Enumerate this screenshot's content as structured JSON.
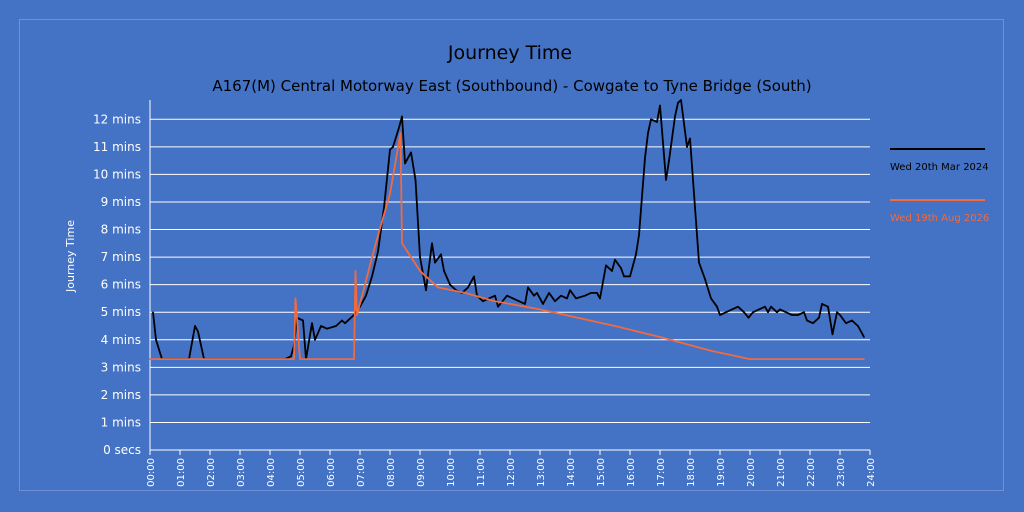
{
  "chart_data": {
    "type": "line",
    "title": "Journey Time",
    "subtitle": "A167(M) Central Motorway East (Southbound) - Cowgate to Tyne Bridge (South)",
    "ylabel": "Journey Time",
    "xlabel": "",
    "ylim": [
      0,
      12.7
    ],
    "xlim": [
      0,
      24
    ],
    "ytick_labels": [
      "0 secs",
      "1 mins",
      "2 mins",
      "3 mins",
      "4 mins",
      "5 mins",
      "6 mins",
      "7 mins",
      "8 mins",
      "9 mins",
      "10 mins",
      "11 mins",
      "12 mins"
    ],
    "xtick_labels": [
      "00:00",
      "01:00",
      "02:00",
      "03:00",
      "04:00",
      "05:00",
      "06:00",
      "07:00",
      "08:00",
      "09:00",
      "10:00",
      "11:00",
      "12:00",
      "13:00",
      "14:00",
      "15:00",
      "16:00",
      "17:00",
      "18:00",
      "19:00",
      "20:00",
      "21:00",
      "22:00",
      "23:00",
      "24:00"
    ],
    "grid": true,
    "legend_position": "right",
    "series": [
      {
        "name": "Wed 20th Mar 2024",
        "color": "#000000",
        "points": [
          [
            0.1,
            5.0
          ],
          [
            0.2,
            4.0
          ],
          [
            0.4,
            3.3
          ],
          [
            1.0,
            3.3
          ],
          [
            1.3,
            3.3
          ],
          [
            1.5,
            4.5
          ],
          [
            1.6,
            4.3
          ],
          [
            1.8,
            3.3
          ],
          [
            2.5,
            3.3
          ],
          [
            3.5,
            3.3
          ],
          [
            4.5,
            3.3
          ],
          [
            4.7,
            3.4
          ],
          [
            4.8,
            3.8
          ],
          [
            4.9,
            4.8
          ],
          [
            5.1,
            4.7
          ],
          [
            5.2,
            3.3
          ],
          [
            5.4,
            4.6
          ],
          [
            5.5,
            4.0
          ],
          [
            5.7,
            4.5
          ],
          [
            5.9,
            4.4
          ],
          [
            6.2,
            4.5
          ],
          [
            6.4,
            4.7
          ],
          [
            6.5,
            4.6
          ],
          [
            6.8,
            4.9
          ],
          [
            7.0,
            5.2
          ],
          [
            7.2,
            5.6
          ],
          [
            7.4,
            6.3
          ],
          [
            7.6,
            7.2
          ],
          [
            7.8,
            8.8
          ],
          [
            8.0,
            10.9
          ],
          [
            8.1,
            11.0
          ],
          [
            8.3,
            11.7
          ],
          [
            8.4,
            12.1
          ],
          [
            8.5,
            10.4
          ],
          [
            8.7,
            10.8
          ],
          [
            8.85,
            9.8
          ],
          [
            9.0,
            7.0
          ],
          [
            9.2,
            5.8
          ],
          [
            9.4,
            7.5
          ],
          [
            9.5,
            6.8
          ],
          [
            9.7,
            7.1
          ],
          [
            9.8,
            6.5
          ],
          [
            10.0,
            6.0
          ],
          [
            10.2,
            5.8
          ],
          [
            10.4,
            5.7
          ],
          [
            10.6,
            5.9
          ],
          [
            10.8,
            6.3
          ],
          [
            10.9,
            5.6
          ],
          [
            11.1,
            5.4
          ],
          [
            11.3,
            5.5
          ],
          [
            11.5,
            5.6
          ],
          [
            11.6,
            5.2
          ],
          [
            11.9,
            5.6
          ],
          [
            12.1,
            5.5
          ],
          [
            12.3,
            5.4
          ],
          [
            12.5,
            5.3
          ],
          [
            12.6,
            5.9
          ],
          [
            12.8,
            5.6
          ],
          [
            12.9,
            5.7
          ],
          [
            13.1,
            5.3
          ],
          [
            13.3,
            5.7
          ],
          [
            13.5,
            5.4
          ],
          [
            13.7,
            5.6
          ],
          [
            13.9,
            5.5
          ],
          [
            14.0,
            5.8
          ],
          [
            14.2,
            5.5
          ],
          [
            14.5,
            5.6
          ],
          [
            14.7,
            5.7
          ],
          [
            14.9,
            5.7
          ],
          [
            15.0,
            5.5
          ],
          [
            15.2,
            6.7
          ],
          [
            15.4,
            6.5
          ],
          [
            15.5,
            6.9
          ],
          [
            15.7,
            6.6
          ],
          [
            15.8,
            6.3
          ],
          [
            16.0,
            6.3
          ],
          [
            16.2,
            7.1
          ],
          [
            16.3,
            7.8
          ],
          [
            16.5,
            10.6
          ],
          [
            16.6,
            11.5
          ],
          [
            16.7,
            12.0
          ],
          [
            16.9,
            11.9
          ],
          [
            17.0,
            12.5
          ],
          [
            17.2,
            9.8
          ],
          [
            17.3,
            10.5
          ],
          [
            17.5,
            12.1
          ],
          [
            17.6,
            12.6
          ],
          [
            17.7,
            12.7
          ],
          [
            17.9,
            11.0
          ],
          [
            18.0,
            11.3
          ],
          [
            18.3,
            6.8
          ],
          [
            18.5,
            6.2
          ],
          [
            18.7,
            5.5
          ],
          [
            18.9,
            5.2
          ],
          [
            19.0,
            4.9
          ],
          [
            19.2,
            5.0
          ],
          [
            19.4,
            5.1
          ],
          [
            19.6,
            5.2
          ],
          [
            19.8,
            5.0
          ],
          [
            19.95,
            4.8
          ],
          [
            20.1,
            5.0
          ],
          [
            20.3,
            5.1
          ],
          [
            20.5,
            5.2
          ],
          [
            20.6,
            5.0
          ],
          [
            20.7,
            5.2
          ],
          [
            20.9,
            5.0
          ],
          [
            21.0,
            5.1
          ],
          [
            21.2,
            5.0
          ],
          [
            21.4,
            4.9
          ],
          [
            21.6,
            4.9
          ],
          [
            21.8,
            5.0
          ],
          [
            21.9,
            4.7
          ],
          [
            22.1,
            4.6
          ],
          [
            22.3,
            4.8
          ],
          [
            22.4,
            5.3
          ],
          [
            22.6,
            5.2
          ],
          [
            22.75,
            4.2
          ],
          [
            22.9,
            5.0
          ],
          [
            23.0,
            4.9
          ],
          [
            23.2,
            4.6
          ],
          [
            23.4,
            4.7
          ],
          [
            23.6,
            4.5
          ],
          [
            23.8,
            4.1
          ]
        ]
      },
      {
        "name": "Wed 19th Aug 2026",
        "color": "#f26a3d",
        "points": [
          [
            0.0,
            3.3
          ],
          [
            4.8,
            3.3
          ],
          [
            4.85,
            5.5
          ],
          [
            5.0,
            3.3
          ],
          [
            6.8,
            3.3
          ],
          [
            6.85,
            6.5
          ],
          [
            6.9,
            4.9
          ],
          [
            7.5,
            7.4
          ],
          [
            8.0,
            9.3
          ],
          [
            8.35,
            11.5
          ],
          [
            8.4,
            7.5
          ],
          [
            9.0,
            6.5
          ],
          [
            9.6,
            5.9
          ],
          [
            10.5,
            5.7
          ],
          [
            11.5,
            5.4
          ],
          [
            13.0,
            5.1
          ],
          [
            15.5,
            4.5
          ],
          [
            17.0,
            4.1
          ],
          [
            18.7,
            3.6
          ],
          [
            20.0,
            3.3
          ],
          [
            23.8,
            3.3
          ]
        ]
      }
    ]
  }
}
